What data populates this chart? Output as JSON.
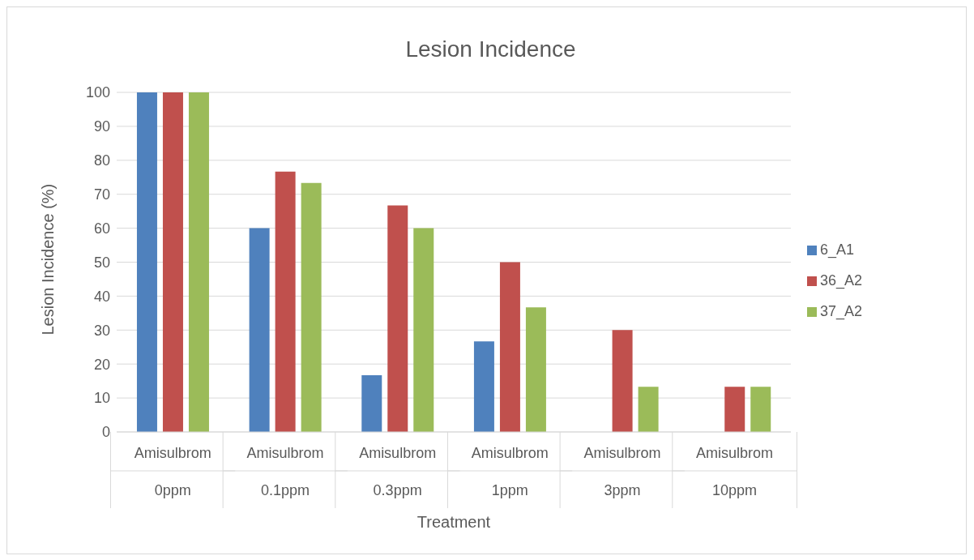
{
  "chart_data": {
    "type": "bar",
    "title": "Lesion Incidence",
    "xlabel": "Treatment",
    "ylabel": "Lesion Incidence (%)",
    "categories": [
      "Amisulbrom 0ppm",
      "Amisulbrom 0.1ppm",
      "Amisulbrom 0.3ppm",
      "Amisulbrom 1ppm",
      "Amisulbrom 3ppm",
      "Amisulbrom 10ppm"
    ],
    "series": [
      {
        "name": "6_A1",
        "color": "#4f81bd",
        "values": [
          100,
          60,
          16.7,
          26.7,
          0,
          0
        ]
      },
      {
        "name": "36_A2",
        "color": "#c0504d",
        "values": [
          100,
          76.7,
          66.7,
          50,
          30,
          13.3
        ]
      },
      {
        "name": "37_A2",
        "color": "#9bbb59",
        "values": [
          100,
          73.3,
          60,
          36.7,
          13.3,
          13.3
        ]
      }
    ],
    "ylim": [
      0,
      100
    ],
    "yticks": [
      0,
      10,
      20,
      30,
      40,
      50,
      60,
      70,
      80,
      90,
      100
    ],
    "grid": "y",
    "legend": "right"
  }
}
